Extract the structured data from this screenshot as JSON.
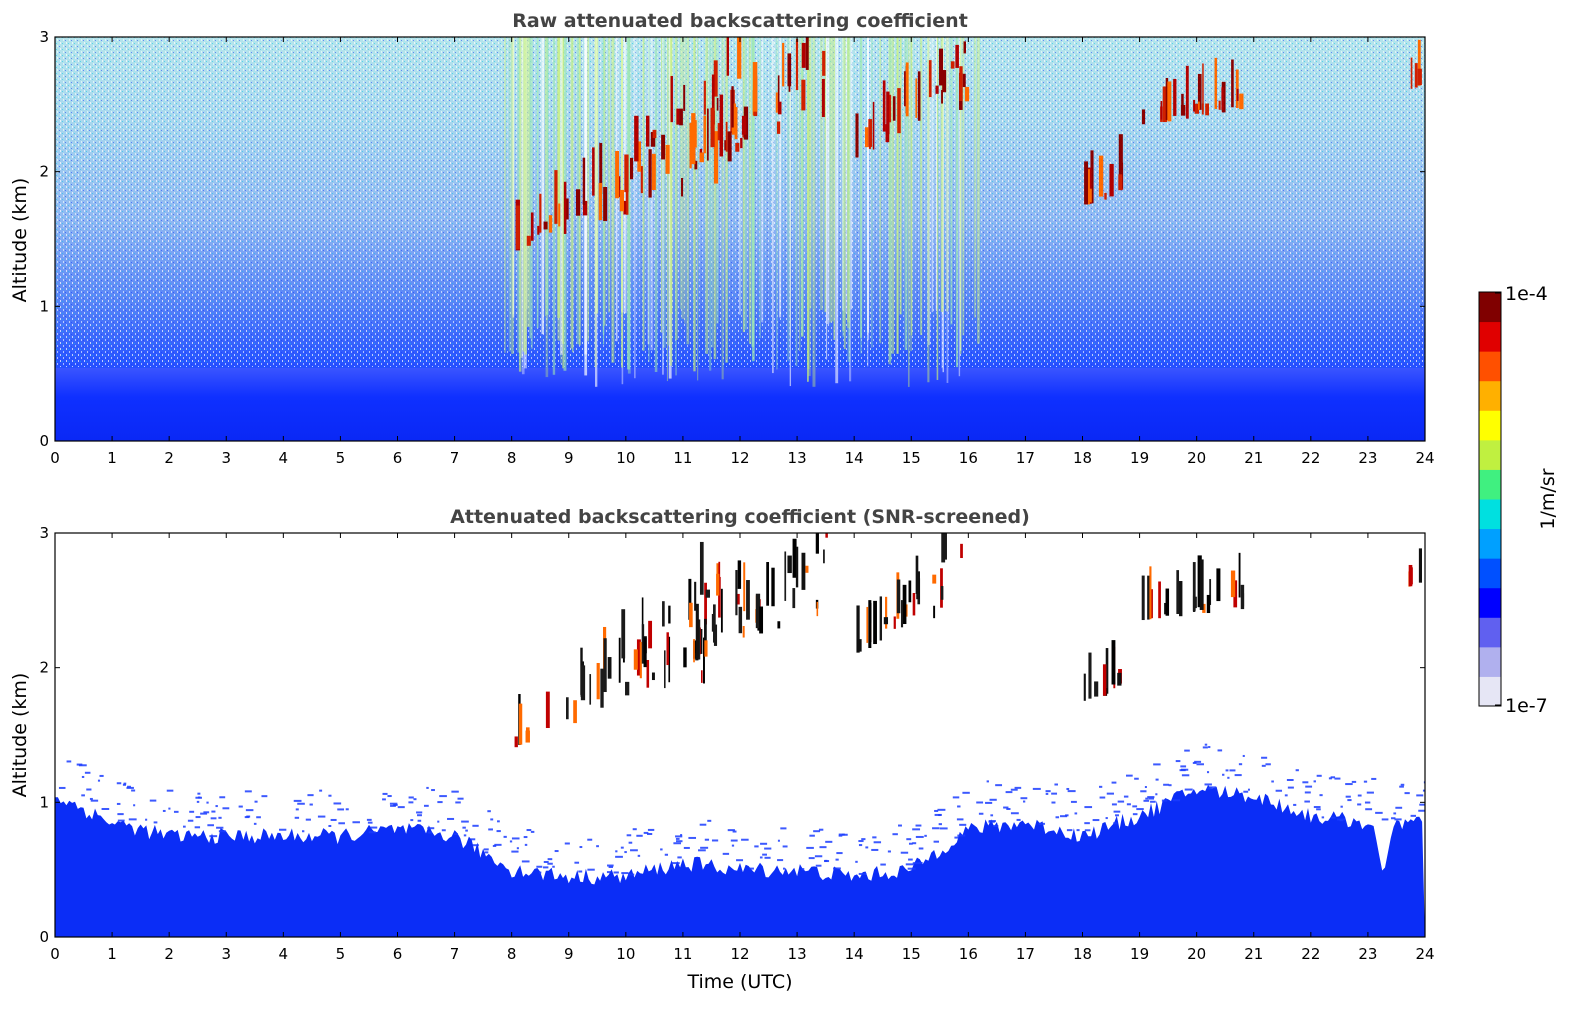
{
  "chart_data": [
    {
      "type": "heatmap",
      "title": "Raw attenuated backscattering coefficient",
      "xlabel": "",
      "ylabel": "Altitude (km)",
      "xlim": [
        0,
        24
      ],
      "ylim": [
        0,
        3
      ],
      "xticks": [
        "0",
        "1",
        "2",
        "3",
        "4",
        "5",
        "6",
        "7",
        "8",
        "9",
        "10",
        "11",
        "12",
        "13",
        "14",
        "15",
        "16",
        "17",
        "18",
        "19",
        "20",
        "21",
        "22",
        "23",
        "24"
      ],
      "yticks": [
        "0",
        "1",
        "2",
        "3"
      ],
      "description_values": {
        "boundary_layer_top_km": 0.55,
        "cloud_layers": [
          {
            "time_start": 8.0,
            "time_end": 12.0,
            "alt_start_km": 1.4,
            "alt_end_km": 2.8
          },
          {
            "time_start": 11.0,
            "time_end": 13.5,
            "alt_start_km": 2.0,
            "alt_end_km": 3.0
          },
          {
            "time_start": 14.0,
            "time_end": 16.0,
            "alt_start_km": 2.1,
            "alt_end_km": 3.0
          },
          {
            "time_start": 18.0,
            "time_end": 18.8,
            "alt_start_km": 1.75,
            "alt_end_km": 1.95
          },
          {
            "time_start": 19.0,
            "time_end": 20.8,
            "alt_start_km": 2.35,
            "alt_end_km": 2.55
          },
          {
            "time_start": 23.7,
            "time_end": 23.95,
            "alt_start_km": 2.6,
            "alt_end_km": 2.7
          }
        ]
      }
    },
    {
      "type": "heatmap",
      "title": "Attenuated backscattering coefficient (SNR-screened)",
      "xlabel": "Time (UTC)",
      "ylabel": "Altitude (km)",
      "xlim": [
        0,
        24
      ],
      "ylim": [
        0,
        3
      ],
      "xticks": [
        "0",
        "1",
        "2",
        "3",
        "4",
        "5",
        "6",
        "7",
        "8",
        "9",
        "10",
        "11",
        "12",
        "13",
        "14",
        "15",
        "16",
        "17",
        "18",
        "19",
        "20",
        "21",
        "22",
        "23",
        "24"
      ],
      "yticks": [
        "0",
        "1",
        "2",
        "3"
      ],
      "description_values": {
        "screened_boundary_layer_km": [
          [
            0,
            1.05
          ],
          [
            1,
            0.85
          ],
          [
            2,
            0.75
          ],
          [
            3,
            0.75
          ],
          [
            4,
            0.75
          ],
          [
            5,
            0.75
          ],
          [
            6,
            0.8
          ],
          [
            7,
            0.75
          ],
          [
            8,
            0.5
          ],
          [
            9,
            0.45
          ],
          [
            10,
            0.45
          ],
          [
            11,
            0.55
          ],
          [
            12,
            0.5
          ],
          [
            13,
            0.5
          ],
          [
            14,
            0.45
          ],
          [
            15,
            0.5
          ],
          [
            16,
            0.8
          ],
          [
            17,
            0.85
          ],
          [
            18,
            0.75
          ],
          [
            19,
            0.9
          ],
          [
            20,
            1.1
          ],
          [
            21,
            1.05
          ],
          [
            22,
            0.9
          ],
          [
            23,
            0.85
          ],
          [
            24,
            0.85
          ]
        ]
      }
    }
  ],
  "colorbar": {
    "label": "1/m/sr",
    "max_label": "1e-4",
    "min_label": "1e-7",
    "colors": [
      "#e6e6f5",
      "#b0b0ee",
      "#6060f0",
      "#0000ff",
      "#0050ff",
      "#00a0ff",
      "#00e0e0",
      "#40f080",
      "#c0f040",
      "#ffff00",
      "#ffb000",
      "#ff5000",
      "#e00000",
      "#800000"
    ]
  }
}
